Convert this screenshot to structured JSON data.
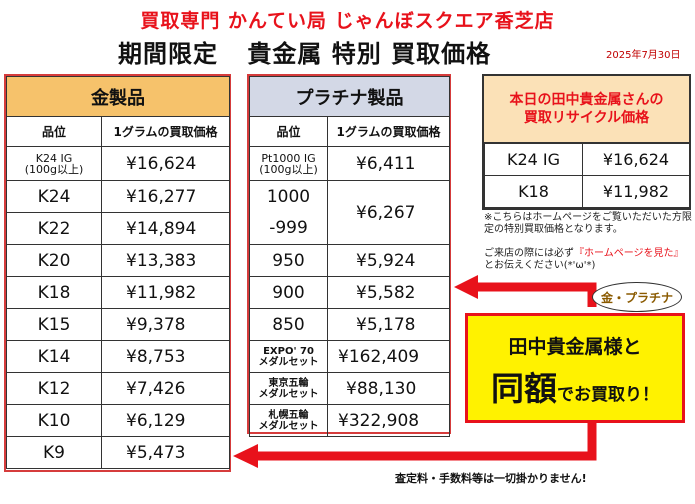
{
  "header": {
    "shop": "買取専門 かんてい局 じゃんぼスクエア香芝店",
    "title_parts": [
      "期間限定",
      "貴金属 特別 買取価格"
    ],
    "date": "2025年7月30日"
  },
  "gold_table": {
    "title": "金製品",
    "col_grade": "品位",
    "col_price": "1グラムの買取価格",
    "rows": [
      {
        "grade": "K24 IG",
        "sub": "(100g以上)",
        "price": "¥16,624"
      },
      {
        "grade": "K24",
        "price": "¥16,277"
      },
      {
        "grade": "K22",
        "price": "¥14,894"
      },
      {
        "grade": "K20",
        "price": "¥13,383"
      },
      {
        "grade": "K18",
        "price": "¥11,982"
      },
      {
        "grade": "K15",
        "price": "¥9,378"
      },
      {
        "grade": "K14",
        "price": "¥8,753"
      },
      {
        "grade": "K12",
        "price": "¥7,426"
      },
      {
        "grade": "K10",
        "price": "¥6,129"
      },
      {
        "grade": "K9",
        "price": "¥5,473"
      }
    ]
  },
  "platinum_table": {
    "title": "プラチナ製品",
    "col_grade": "品位",
    "col_price": "1グラムの買取価格",
    "rows": [
      {
        "grade": "Pt1000 IG",
        "sub": "(100g以上)",
        "price": "¥6,411"
      },
      {
        "grade": "1000",
        "price": "¥6,267"
      },
      {
        "grade": "-999"
      },
      {
        "grade": "950",
        "price": "¥5,924"
      },
      {
        "grade": "900",
        "price": "¥5,582"
      },
      {
        "grade": "850",
        "price": "¥5,178"
      },
      {
        "grade": "EXPO' 70",
        "sub": "メダルセット",
        "price": "¥162,409"
      },
      {
        "grade": "東京五輪",
        "sub": "メダルセット",
        "price": "¥88,130"
      },
      {
        "grade": "札幌五輪",
        "sub": "メダルセット",
        "price": "¥322,908"
      }
    ]
  },
  "rate_box": {
    "title_line1": "本日の田中貴金属さんの",
    "title_line2": "買取リサイクル価格",
    "rows": [
      {
        "grade": "K24 IG",
        "price": "¥16,624"
      },
      {
        "grade": "K18",
        "price": "¥11,982"
      }
    ]
  },
  "notes": {
    "note1": "※こちらはホームページをご覧いただいた方限定の特別買取価格となります。",
    "note2_a": "ご来店の際には必ず",
    "note2_red": "『ホームページを見た』",
    "note2_b": "とお伝えください(*'ω'*)"
  },
  "callout": {
    "bubble": "金・プラチナ",
    "line1": "田中貴金属様と",
    "line2_big": "同額",
    "line2_small": "でお買取り！"
  },
  "footer": "査定料・手数料等は一切掛かりません!",
  "colors": {
    "accent_red": "#e8121b",
    "gold_header": "#f6c26b",
    "plat_header": "#d3d8e6",
    "callout_yellow": "#fff200"
  }
}
